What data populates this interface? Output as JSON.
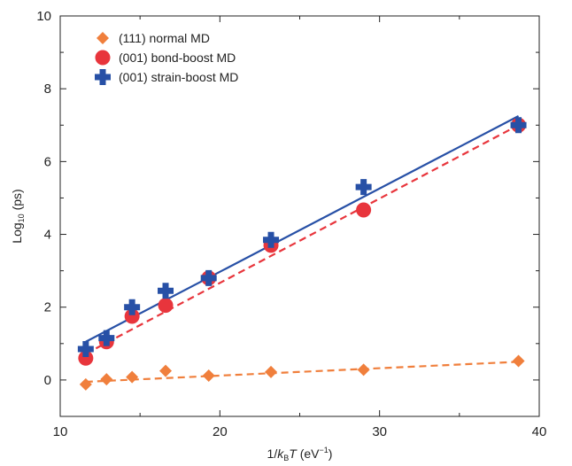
{
  "chart_data": {
    "type": "scatter",
    "xlabel": {
      "prefix": "1/",
      "k": "k",
      "sub": "B",
      "T": "T",
      "unit": " (eV",
      "exp": "−1",
      "close": ")"
    },
    "ylabel": {
      "prefix": "Log",
      "sub": "10",
      "suffix": " (ps)"
    },
    "xlim": [
      10,
      40
    ],
    "ylim": [
      -1,
      10
    ],
    "x_ticks": [
      10,
      20,
      30,
      40
    ],
    "x_minor_ticks": [
      15,
      25,
      35
    ],
    "y_ticks": [
      0,
      2,
      4,
      6,
      8,
      10
    ],
    "y_minor_ticks": [
      -1,
      1,
      3,
      5,
      7,
      9
    ],
    "legend_position": "top-left",
    "series": [
      {
        "name": "(111) normal MD",
        "marker": "diamond",
        "color": "#f07f3c",
        "x": [
          11.6,
          12.9,
          14.5,
          16.6,
          19.3,
          23.2,
          29.0,
          38.7
        ],
        "y": [
          -0.12,
          0.02,
          0.08,
          0.25,
          0.12,
          0.22,
          0.28,
          0.52
        ]
      },
      {
        "name": "(001) bond-boost MD",
        "marker": "circle",
        "color": "#e8353c",
        "x": [
          11.6,
          12.9,
          14.5,
          16.6,
          19.3,
          23.2,
          29.0,
          38.7
        ],
        "y": [
          0.6,
          1.05,
          1.75,
          2.05,
          2.8,
          3.7,
          4.67,
          7.0
        ]
      },
      {
        "name": "(001) strain-boost MD",
        "marker": "plus",
        "color": "#2750a6",
        "x": [
          11.6,
          12.9,
          14.5,
          16.6,
          19.3,
          23.2,
          29.0,
          38.7
        ],
        "y": [
          0.85,
          1.15,
          2.0,
          2.45,
          2.8,
          3.85,
          5.3,
          7.0
        ]
      }
    ],
    "fits": [
      {
        "color": "#e8353c",
        "dash": true,
        "x": [
          11.6,
          38.7
        ],
        "y": [
          0.72,
          7.0
        ]
      },
      {
        "color": "#2750a6",
        "dash": false,
        "x": [
          11.6,
          38.7
        ],
        "y": [
          1.05,
          7.25
        ]
      },
      {
        "color": "#f07f3c",
        "dash": true,
        "x": [
          11.6,
          38.7
        ],
        "y": [
          -0.05,
          0.5
        ]
      }
    ]
  }
}
